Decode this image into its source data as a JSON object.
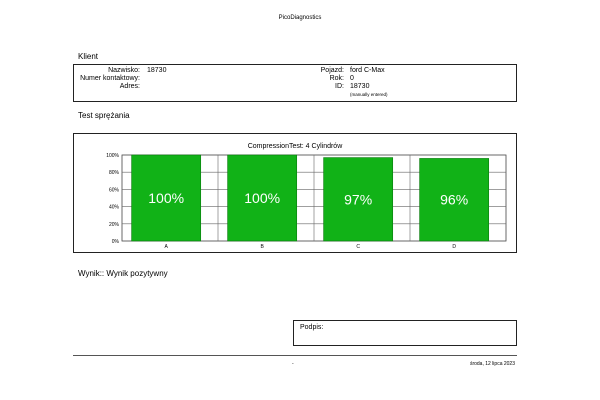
{
  "header": {
    "title": "PicoDiagnostics"
  },
  "client_section": {
    "title": "Klient",
    "fields_left": [
      {
        "label": "Nazwisko:",
        "value": "18730"
      },
      {
        "label": "Numer kontaktowy:",
        "value": ""
      },
      {
        "label": "Adres:",
        "value": ""
      }
    ],
    "fields_right": [
      {
        "label": "Pojazd:",
        "value": "ford C-Max"
      },
      {
        "label": "Rok:",
        "value": "0"
      },
      {
        "label": "ID:",
        "value": "18730"
      }
    ],
    "id_note": "(manually entered)"
  },
  "test_section": {
    "title": "Test sprężania"
  },
  "chart_data": {
    "type": "bar",
    "title": "CompressionTest: 4 Cylindrów",
    "categories": [
      "A",
      "B",
      "C",
      "D"
    ],
    "values": [
      100,
      100,
      97,
      96
    ],
    "value_labels": [
      "100%",
      "100%",
      "97%",
      "96%"
    ],
    "ylim": [
      0,
      100
    ],
    "yticks": [
      "0%",
      "20%",
      "40%",
      "60%",
      "80%",
      "100%"
    ],
    "bar_color": "#11b217",
    "grid": true
  },
  "result": {
    "text": "Wynik:: Wynik pozytywny"
  },
  "signature": {
    "label": "Podpis:"
  },
  "footer": {
    "center": "-",
    "date": "środa, 12 lipca 2023"
  }
}
